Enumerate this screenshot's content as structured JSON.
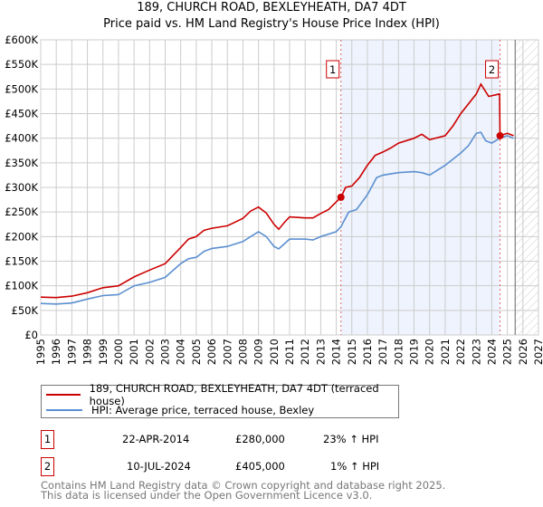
{
  "chart_data": {
    "type": "line",
    "title": "189, CHURCH ROAD, BEXLEYHEATH, DA7 4DT",
    "subtitle": "Price paid vs. HM Land Registry's House Price Index (HPI)",
    "xlim": [
      1995,
      2027
    ],
    "ylim": [
      0,
      600000
    ],
    "x_ticks": [
      "1995",
      "1996",
      "1997",
      "1998",
      "1999",
      "2000",
      "2001",
      "2002",
      "2003",
      "2004",
      "2005",
      "2006",
      "2007",
      "2008",
      "2009",
      "2010",
      "2011",
      "2012",
      "2013",
      "2014",
      "2015",
      "2016",
      "2017",
      "2018",
      "2019",
      "2020",
      "2021",
      "2022",
      "2023",
      "2024",
      "2025",
      "2026",
      "2027"
    ],
    "y_ticks": [
      {
        "v": 0,
        "label": "£0"
      },
      {
        "v": 50000,
        "label": "£50K"
      },
      {
        "v": 100000,
        "label": "£100K"
      },
      {
        "v": 150000,
        "label": "£150K"
      },
      {
        "v": 200000,
        "label": "£200K"
      },
      {
        "v": 250000,
        "label": "£250K"
      },
      {
        "v": 300000,
        "label": "£300K"
      },
      {
        "v": 350000,
        "label": "£350K"
      },
      {
        "v": 400000,
        "label": "£400K"
      },
      {
        "v": 450000,
        "label": "£450K"
      },
      {
        "v": 500000,
        "label": "£500K"
      },
      {
        "v": 550000,
        "label": "£550K"
      },
      {
        "v": 600000,
        "label": "£600K"
      }
    ],
    "grid": true,
    "series": [
      {
        "name": "189, CHURCH ROAD, BEXLEYHEATH, DA7 4DT (terraced house)",
        "color": "#cc0000",
        "x": [
          1995,
          1996,
          1997,
          1998,
          1999,
          2000,
          2001,
          2002,
          2003,
          2004,
          2004.5,
          2005,
          2005.5,
          2006,
          2007,
          2008,
          2008.5,
          2009,
          2009.5,
          2010,
          2010.3,
          2010.7,
          2011,
          2012,
          2012.5,
          2013,
          2013.5,
          2014.3,
          2014.6,
          2015,
          2015.5,
          2016,
          2016.5,
          2017,
          2017.5,
          2018,
          2019,
          2019.5,
          2020,
          2021,
          2021.5,
          2022,
          2023,
          2023.3,
          2023.8,
          2024.5,
          2024.53,
          2025,
          2025.4
        ],
        "y": [
          77000,
          76000,
          79000,
          86000,
          96000,
          100000,
          118000,
          132000,
          145000,
          178000,
          195000,
          200000,
          213000,
          217000,
          222000,
          237000,
          252000,
          260000,
          248000,
          225000,
          215000,
          230000,
          240000,
          238000,
          238000,
          247000,
          255000,
          280000,
          300000,
          303000,
          320000,
          345000,
          365000,
          372000,
          380000,
          390000,
          400000,
          408000,
          397000,
          405000,
          425000,
          450000,
          490000,
          510000,
          485000,
          490000,
          405000,
          410000,
          405000
        ]
      },
      {
        "name": "HPI: Average price, terraced house, Bexley",
        "color": "#5b8fd0",
        "x": [
          1995,
          1996,
          1997,
          1998,
          1999,
          2000,
          2001,
          2002,
          2003,
          2004,
          2004.5,
          2005,
          2005.5,
          2006,
          2007,
          2008,
          2008.5,
          2009,
          2009.5,
          2010,
          2010.3,
          2011,
          2012,
          2012.5,
          2013,
          2014,
          2014.3,
          2014.8,
          2015.3,
          2016,
          2016.6,
          2017,
          2018,
          2019,
          2019.5,
          2020,
          2021,
          2022,
          2022.5,
          2023,
          2023.3,
          2023.6,
          2024,
          2024.5,
          2025,
          2025.4
        ],
        "y": [
          64000,
          63000,
          65000,
          73000,
          80000,
          82000,
          100000,
          107000,
          117000,
          145000,
          155000,
          158000,
          170000,
          176000,
          180000,
          190000,
          200000,
          210000,
          200000,
          180000,
          175000,
          195000,
          195000,
          193000,
          200000,
          210000,
          220000,
          250000,
          255000,
          285000,
          320000,
          325000,
          330000,
          332000,
          330000,
          325000,
          345000,
          370000,
          385000,
          410000,
          412000,
          395000,
          390000,
          400000,
          405000,
          400000
        ]
      }
    ],
    "sales": [
      {
        "id": "1",
        "x": 2014.3,
        "y": 280000,
        "date": "22-APR-2014",
        "price": "£280,000",
        "hpi": "23% ↑ HPI"
      },
      {
        "id": "2",
        "x": 2024.53,
        "y": 405000,
        "date": "10-JUL-2024",
        "price": "£405,000",
        "hpi": "1% ↑ HPI"
      }
    ],
    "forecast_start": 2025.5,
    "legend_placement": "bottom"
  },
  "footer": {
    "line1": "Contains HM Land Registry data © Crown copyright and database right 2025.",
    "line2": "This data is licensed under the Open Government Licence v3.0."
  }
}
